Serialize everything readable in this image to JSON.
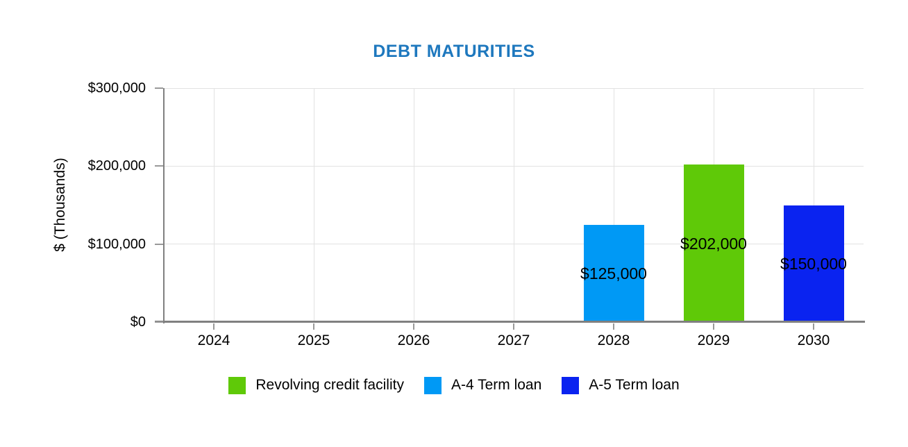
{
  "chart_data": {
    "type": "bar",
    "title": "DEBT MATURITIES",
    "title_color": "#1E78BE",
    "xlabel": "",
    "ylabel": "$ (Thousands)",
    "categories": [
      "2024",
      "2025",
      "2026",
      "2027",
      "2028",
      "2029",
      "2030"
    ],
    "series": [
      {
        "name": "Revolving credit facility",
        "color": "#5FC908",
        "values": [
          null,
          null,
          null,
          null,
          null,
          202000,
          null
        ],
        "data_labels": [
          null,
          null,
          null,
          null,
          null,
          "$202,000",
          null
        ]
      },
      {
        "name": "A-4 Term loan",
        "color": "#0099F5",
        "values": [
          null,
          null,
          null,
          null,
          125000,
          null,
          null
        ],
        "data_labels": [
          null,
          null,
          null,
          null,
          "$125,000",
          null,
          null
        ]
      },
      {
        "name": "A-5 Term loan",
        "color": "#0A23F0",
        "values": [
          null,
          null,
          null,
          null,
          null,
          null,
          150000
        ],
        "data_labels": [
          null,
          null,
          null,
          null,
          null,
          null,
          "$150,000"
        ]
      }
    ],
    "ylim": [
      0,
      300000
    ],
    "yticks": [
      0,
      100000,
      200000,
      300000
    ],
    "ytick_labels": [
      "$0",
      "$100,000",
      "$200,000",
      "$300,000"
    ],
    "grid": true,
    "legend_position": "bottom",
    "axis_color": "#808080",
    "tick_color": "#999999",
    "gridline_color": "#E2E2E2",
    "data_label_color": "#000000"
  }
}
